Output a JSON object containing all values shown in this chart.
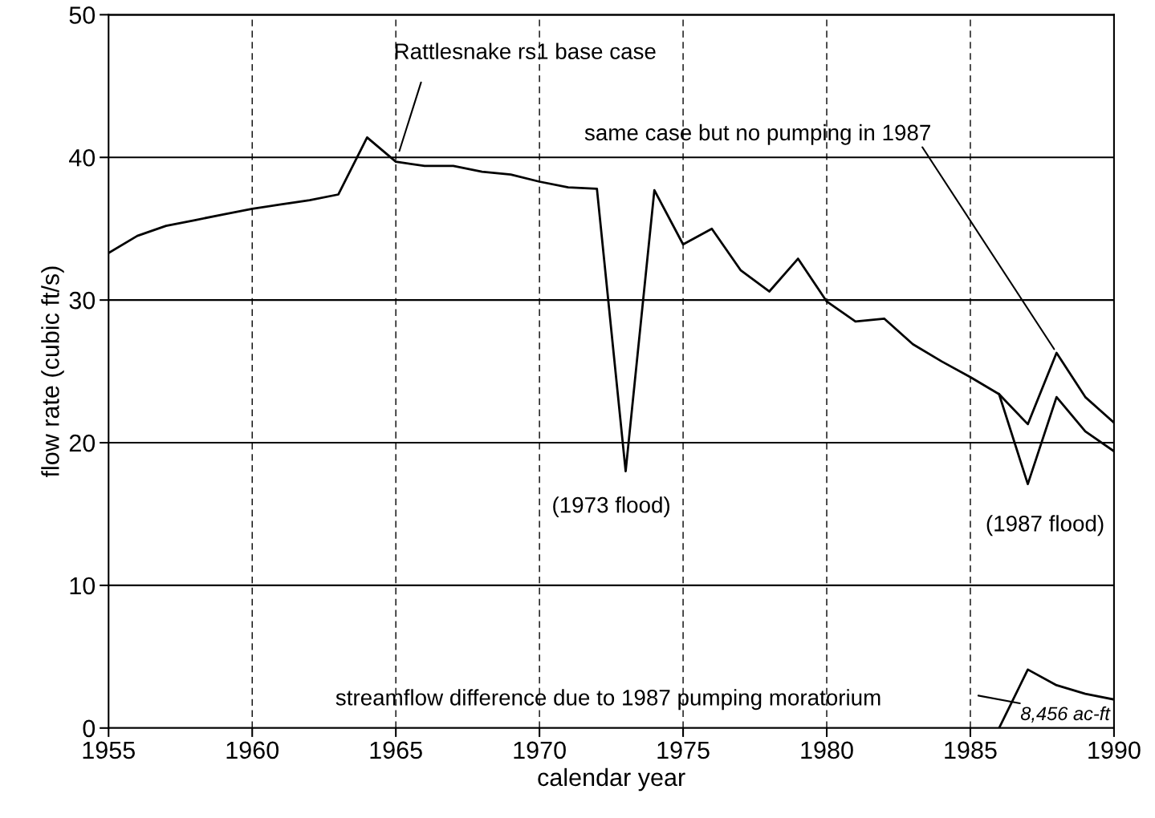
{
  "chart_data": {
    "type": "line",
    "xlabel": "calendar year",
    "ylabel": "flow rate (cubic ft/s)",
    "xlim": [
      1955,
      1990
    ],
    "xticks": [
      1955,
      1960,
      1965,
      1970,
      1975,
      1980,
      1985,
      1990
    ],
    "ylim": [
      0,
      50
    ],
    "yticks": [
      0,
      10,
      20,
      30,
      40,
      50
    ],
    "grid": true,
    "marker": "none",
    "line_style": "solid",
    "series": [
      {
        "color": "#000000",
        "x": [
          1955,
          1956,
          1957,
          1958,
          1959,
          1960,
          1961,
          1962,
          1963,
          1964,
          1965,
          1966,
          1967,
          1968,
          1969,
          1970,
          1971,
          1972,
          1973,
          1974,
          1975,
          1976,
          1977,
          1978,
          1979,
          1980,
          1981,
          1982,
          1983,
          1984,
          1985,
          1986,
          1987,
          1988,
          1989,
          1990
        ],
        "values": [
          33.3,
          34.5,
          35.2,
          35.6,
          36.0,
          36.4,
          36.7,
          37.0,
          37.4,
          41.4,
          39.7,
          39.4,
          39.4,
          39.0,
          38.8,
          38.3,
          37.9,
          37.8,
          18.0,
          37.7,
          33.9,
          35.0,
          32.1,
          30.6,
          32.9,
          29.9,
          28.5,
          28.7,
          26.9,
          25.7,
          24.6,
          23.4,
          17.1,
          23.2,
          20.8,
          19.4
        ]
      },
      {
        "color": "#000000",
        "x": [
          1986,
          1987,
          1988,
          1989,
          1990
        ],
        "values": [
          23.4,
          21.3,
          26.3,
          23.2,
          21.4
        ]
      },
      {
        "color": "#000000",
        "x": [
          1986,
          1987,
          1988,
          1989,
          1990
        ],
        "values": [
          0,
          4.1,
          3.0,
          2.4,
          2.0
        ]
      }
    ],
    "annotations": [
      "Rattlesnake rs1 base case",
      {
        "text": "same case but no pumping in 1987",
        "x": 1988,
        "y": 26.3
      },
      "(1973 flood)",
      "(1987 flood)",
      "streamflow difference due to 1987 pumping moratorium",
      "8,456 ac-ft"
    ]
  }
}
